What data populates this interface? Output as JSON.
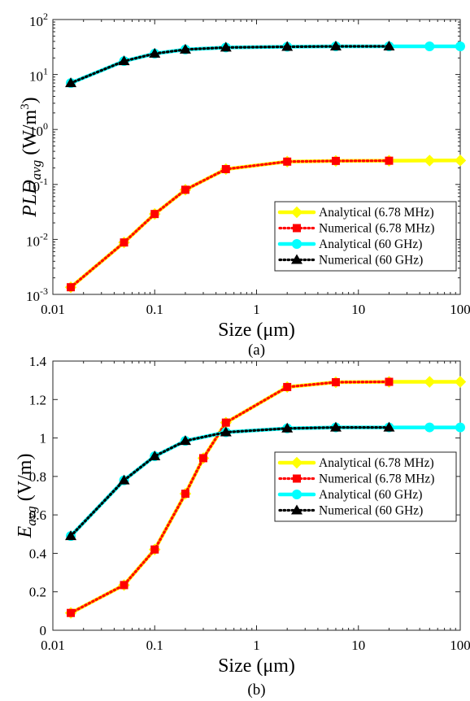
{
  "chart_data": [
    {
      "type": "line",
      "caption": "(a)",
      "xlabel": "Size (μm)",
      "ylabel": {
        "main": "PLD",
        "sub": "avg",
        "unit": "(W/m",
        "unit_sup": "3",
        "unit_close": ")"
      },
      "xscale": "log",
      "yscale": "log",
      "xlim": [
        0.01,
        100
      ],
      "ylim": [
        0.001,
        100
      ],
      "xticks": [
        {
          "value": 0.01,
          "label": "0.01"
        },
        {
          "value": 0.1,
          "label": "0.1"
        },
        {
          "value": 1,
          "label": "1"
        },
        {
          "value": 10,
          "label": "10"
        },
        {
          "value": 100,
          "label": "100"
        }
      ],
      "yticks": [
        {
          "value": 0.001,
          "base": "10",
          "exp": "-3"
        },
        {
          "value": 0.01,
          "base": "10",
          "exp": "-2"
        },
        {
          "value": 0.1,
          "base": "10",
          "exp": "-1"
        },
        {
          "value": 1,
          "base": "10",
          "exp": "0"
        },
        {
          "value": 10,
          "base": "10",
          "exp": "1"
        },
        {
          "value": 100,
          "base": "10",
          "exp": "2"
        }
      ],
      "grid": false,
      "legend_position": "lower-right",
      "series": [
        {
          "name": "Analytical (6.78 MHz)",
          "color": "#FFFF00",
          "style": "solid",
          "marker": "diamond",
          "x": [
            0.015,
            0.05,
            0.1,
            0.2,
            0.5,
            2,
            6,
            20,
            50,
            100
          ],
          "y": [
            0.00135,
            0.0088,
            0.029,
            0.08,
            0.19,
            0.26,
            0.268,
            0.27,
            0.272,
            0.273
          ]
        },
        {
          "name": "Numerical (6.78 MHz)",
          "color": "#FF0000",
          "style": "dotted",
          "marker": "square",
          "x": [
            0.015,
            0.05,
            0.1,
            0.2,
            0.5,
            2,
            6,
            20
          ],
          "y": [
            0.00135,
            0.0088,
            0.029,
            0.08,
            0.19,
            0.26,
            0.268,
            0.27
          ]
        },
        {
          "name": "Analytical (60 GHz)",
          "color": "#00FFFF",
          "style": "solid",
          "marker": "circle",
          "x": [
            0.015,
            0.05,
            0.1,
            0.2,
            0.5,
            2,
            6,
            20,
            50,
            100
          ],
          "y": [
            7,
            17.5,
            24,
            28.5,
            31,
            32,
            32.5,
            32.5,
            32.5,
            32.5
          ]
        },
        {
          "name": "Numerical (60 GHz)",
          "color": "#000000",
          "style": "dotted",
          "marker": "triangle",
          "x": [
            0.015,
            0.05,
            0.1,
            0.2,
            0.5,
            2,
            6,
            20
          ],
          "y": [
            7,
            17.5,
            24,
            28.5,
            31,
            32,
            32.5,
            32.5
          ]
        }
      ]
    },
    {
      "type": "line",
      "caption": "(b)",
      "xlabel": "Size (μm)",
      "ylabel": {
        "main": "E",
        "sub": "avg",
        "unit": "(V/m)"
      },
      "xscale": "log",
      "yscale": "linear",
      "xlim": [
        0.01,
        100
      ],
      "ylim": [
        0,
        1.4
      ],
      "xticks": [
        {
          "value": 0.01,
          "label": "0.01"
        },
        {
          "value": 0.1,
          "label": "0.1"
        },
        {
          "value": 1,
          "label": "1"
        },
        {
          "value": 10,
          "label": "10"
        },
        {
          "value": 100,
          "label": "100"
        }
      ],
      "yticks": [
        {
          "value": 0,
          "label": "0"
        },
        {
          "value": 0.2,
          "label": "0.2"
        },
        {
          "value": 0.4,
          "label": "0.4"
        },
        {
          "value": 0.6,
          "label": "0.6"
        },
        {
          "value": 0.8,
          "label": "0.8"
        },
        {
          "value": 1,
          "label": "1"
        },
        {
          "value": 1.2,
          "label": "1.2"
        },
        {
          "value": 1.4,
          "label": "1.4"
        }
      ],
      "grid": false,
      "legend_position": "right",
      "series": [
        {
          "name": "Analytical (6.78 MHz)",
          "color": "#FFFF00",
          "style": "solid",
          "marker": "diamond",
          "x": [
            0.015,
            0.05,
            0.1,
            0.2,
            0.3,
            0.5,
            2,
            6,
            20,
            50,
            100
          ],
          "y": [
            0.09,
            0.235,
            0.42,
            0.71,
            0.895,
            1.08,
            1.265,
            1.29,
            1.292,
            1.292,
            1.292
          ]
        },
        {
          "name": "Numerical (6.78 MHz)",
          "color": "#FF0000",
          "style": "dotted",
          "marker": "square",
          "x": [
            0.015,
            0.05,
            0.1,
            0.2,
            0.3,
            0.5,
            2,
            6,
            20
          ],
          "y": [
            0.09,
            0.235,
            0.42,
            0.71,
            0.895,
            1.08,
            1.265,
            1.29,
            1.292
          ]
        },
        {
          "name": "Analytical (60 GHz)",
          "color": "#00FFFF",
          "style": "solid",
          "marker": "circle",
          "x": [
            0.015,
            0.05,
            0.1,
            0.2,
            0.5,
            2,
            6,
            20,
            50,
            100
          ],
          "y": [
            0.49,
            0.78,
            0.905,
            0.985,
            1.03,
            1.05,
            1.055,
            1.055,
            1.055,
            1.055
          ]
        },
        {
          "name": "Numerical (60 GHz)",
          "color": "#000000",
          "style": "dotted",
          "marker": "triangle",
          "x": [
            0.015,
            0.05,
            0.1,
            0.2,
            0.5,
            2,
            6,
            20
          ],
          "y": [
            0.49,
            0.78,
            0.905,
            0.985,
            1.03,
            1.05,
            1.055,
            1.055
          ]
        }
      ]
    }
  ]
}
